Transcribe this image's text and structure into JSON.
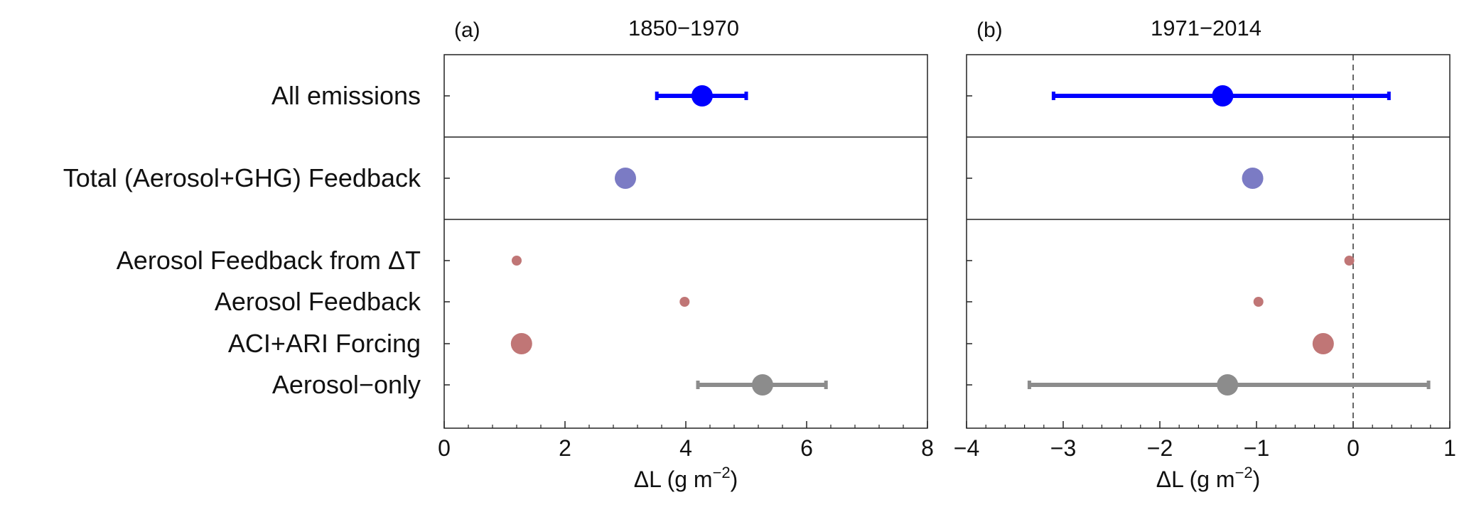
{
  "chart_data": [
    {
      "type": "scatter",
      "panel_label": "(a)",
      "title": "1850−1970",
      "xlabel": "ΔL (g m",
      "xlabel_sup": "−2",
      "xlabel_close": ")",
      "xlim": [
        0,
        8
      ],
      "xticks": [
        0,
        2,
        4,
        6,
        8
      ],
      "xtick_labels": [
        "0",
        "2",
        "4",
        "6",
        "8"
      ],
      "zero_line": false,
      "categories": [
        "All emissions",
        "Total (Aerosol+GHG) Feedback",
        "Aerosol Feedback from ΔT",
        "Aerosol Feedback",
        "ACI+ARI Forcing",
        "Aerosol−only"
      ],
      "series": [
        {
          "category": "All emissions",
          "value": 4.27,
          "err_low": 3.52,
          "err_high": 5.0,
          "color": "#0000ff",
          "marker": "large"
        },
        {
          "category": "Total (Aerosol+GHG) Feedback",
          "value": 3.0,
          "color": "#7b7bc4",
          "marker": "large"
        },
        {
          "category": "Aerosol Feedback from ΔT",
          "value": 1.2,
          "color": "#c07676",
          "marker": "small"
        },
        {
          "category": "Aerosol Feedback",
          "value": 3.98,
          "color": "#c07676",
          "marker": "small"
        },
        {
          "category": "ACI+ARI Forcing",
          "value": 1.28,
          "color": "#c07676",
          "marker": "large"
        },
        {
          "category": "Aerosol−only",
          "value": 5.27,
          "err_low": 4.2,
          "err_high": 6.32,
          "color": "#8c8c8c",
          "marker": "large"
        }
      ]
    },
    {
      "type": "scatter",
      "panel_label": "(b)",
      "title": "1971−2014",
      "xlabel": "ΔL (g m",
      "xlabel_sup": "−2",
      "xlabel_close": ")",
      "xlim": [
        -4,
        1
      ],
      "xticks": [
        -4,
        -3,
        -2,
        -1,
        0,
        1
      ],
      "xtick_labels": [
        "−4",
        "−3",
        "−2",
        "−1",
        "0",
        "1"
      ],
      "zero_line": true,
      "categories": [
        "All emissions",
        "Total (Aerosol+GHG) Feedback",
        "Aerosol Feedback from ΔT",
        "Aerosol Feedback",
        "ACI+ARI Forcing",
        "Aerosol−only"
      ],
      "series": [
        {
          "category": "All emissions",
          "value": -1.35,
          "err_low": -3.1,
          "err_high": 0.37,
          "color": "#0000ff",
          "marker": "large"
        },
        {
          "category": "Total (Aerosol+GHG) Feedback",
          "value": -1.04,
          "color": "#7b7bc4",
          "marker": "large"
        },
        {
          "category": "Aerosol Feedback from ΔT",
          "value": -0.04,
          "color": "#c07676",
          "marker": "small"
        },
        {
          "category": "Aerosol Feedback",
          "value": -0.98,
          "color": "#c07676",
          "marker": "small"
        },
        {
          "category": "ACI+ARI Forcing",
          "value": -0.31,
          "color": "#c07676",
          "marker": "large"
        },
        {
          "category": "Aerosol−only",
          "value": -1.3,
          "err_low": -3.35,
          "err_high": 0.78,
          "color": "#8c8c8c",
          "marker": "large"
        }
      ]
    }
  ]
}
